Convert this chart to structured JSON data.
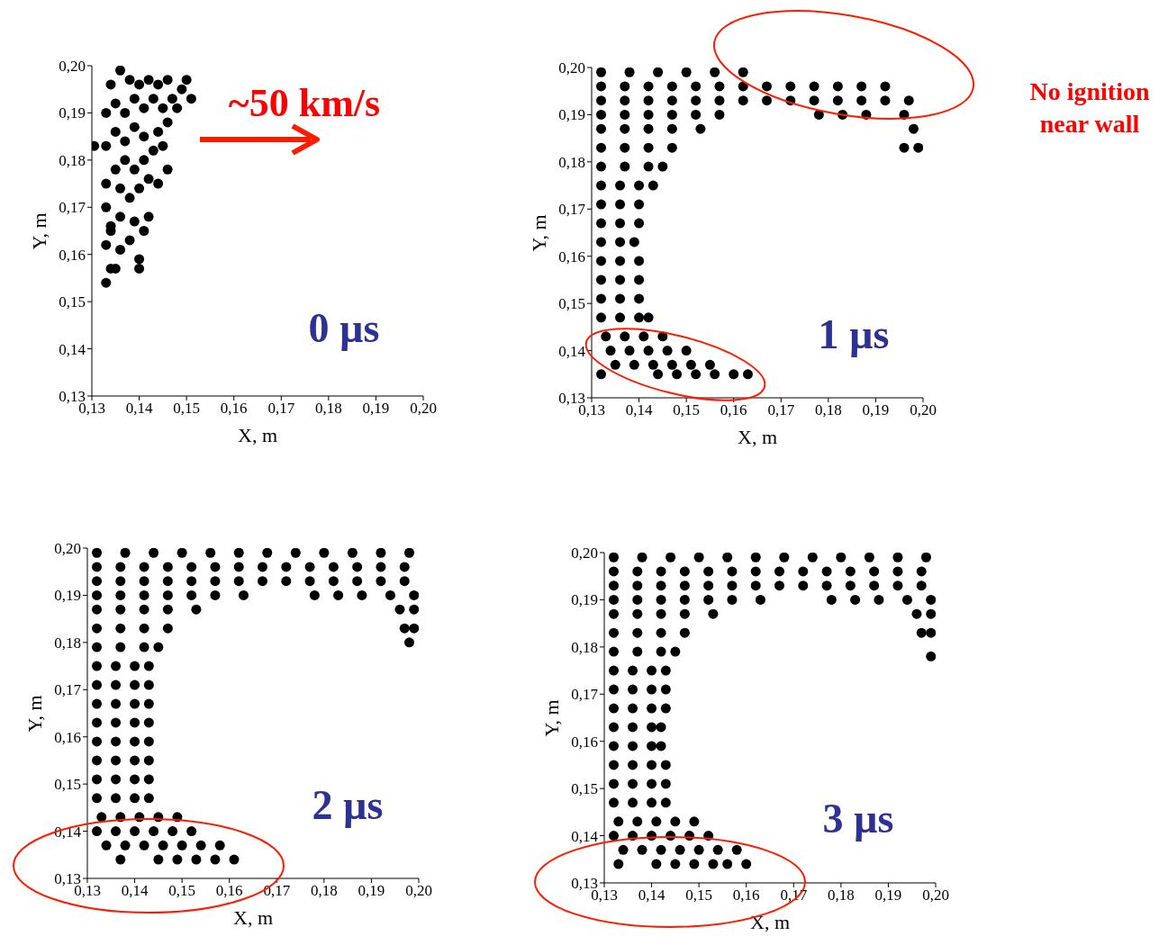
{
  "chart_data": [
    {
      "type": "scatter",
      "xlabel": "X, m",
      "ylabel": "Y, m",
      "marker": "circle",
      "color": "#000000",
      "xlim": [
        0.13,
        0.2
      ],
      "ylim": [
        0.13,
        0.2
      ],
      "xticks": [
        {
          "value": 0.13,
          "label": "0,13"
        },
        {
          "value": 0.14,
          "label": "0,14"
        },
        {
          "value": 0.15,
          "label": "0,15"
        },
        {
          "value": 0.16,
          "label": "0,16"
        },
        {
          "value": 0.17,
          "label": "0,17"
        },
        {
          "value": 0.18,
          "label": "0,18"
        },
        {
          "value": 0.19,
          "label": "0,19"
        },
        {
          "value": 0.2,
          "label": "0,20"
        }
      ],
      "yticks": [
        {
          "value": 0.13,
          "label": "0,13"
        },
        {
          "value": 0.14,
          "label": "0,14"
        },
        {
          "value": 0.15,
          "label": "0,15"
        },
        {
          "value": 0.16,
          "label": "0,16"
        },
        {
          "value": 0.17,
          "label": "0,17"
        },
        {
          "value": 0.18,
          "label": "0,18"
        },
        {
          "value": 0.19,
          "label": "0,19"
        },
        {
          "value": 0.2,
          "label": "0,20"
        }
      ],
      "x": [
        0.1305,
        0.133,
        0.134,
        0.135,
        0.14,
        0.14,
        0.133,
        0.134,
        0.136,
        0.138,
        0.141,
        0.139,
        0.142,
        0.133,
        0.136,
        0.138,
        0.14,
        0.142,
        0.144,
        0.133,
        0.135,
        0.137,
        0.139,
        0.141,
        0.143,
        0.146,
        0.133,
        0.135,
        0.137,
        0.139,
        0.141,
        0.144,
        0.146,
        0.133,
        0.135,
        0.137,
        0.139,
        0.141,
        0.143,
        0.145,
        0.147,
        0.149,
        0.151,
        0.15,
        0.134,
        0.136,
        0.138,
        0.14,
        0.142,
        0.144,
        0.146,
        0.148,
        0.145,
        0.136,
        0.134
      ],
      "values": [
        0.183,
        0.154,
        0.157,
        0.157,
        0.157,
        0.159,
        0.162,
        0.165,
        0.161,
        0.163,
        0.165,
        0.167,
        0.168,
        0.17,
        0.168,
        0.172,
        0.174,
        0.176,
        0.175,
        0.175,
        0.178,
        0.18,
        0.178,
        0.18,
        0.182,
        0.178,
        0.183,
        0.186,
        0.184,
        0.187,
        0.185,
        0.186,
        0.188,
        0.19,
        0.192,
        0.19,
        0.193,
        0.191,
        0.193,
        0.191,
        0.193,
        0.195,
        0.193,
        0.197,
        0.196,
        0.199,
        0.197,
        0.196,
        0.197,
        0.196,
        0.197,
        0.191,
        0.183,
        0.174,
        0.166
      ],
      "annotations": [
        "0 µs",
        "~50 km/s"
      ]
    },
    {
      "type": "scatter",
      "xlabel": "X, m",
      "ylabel": "Y, m",
      "marker": "circle",
      "color": "#000000",
      "xlim": [
        0.13,
        0.2
      ],
      "ylim": [
        0.13,
        0.2
      ],
      "xticks": [
        {
          "value": 0.13,
          "label": "0,13"
        },
        {
          "value": 0.14,
          "label": "0,14"
        },
        {
          "value": 0.15,
          "label": "0,15"
        },
        {
          "value": 0.16,
          "label": "0,16"
        },
        {
          "value": 0.17,
          "label": "0,17"
        },
        {
          "value": 0.18,
          "label": "0,18"
        },
        {
          "value": 0.19,
          "label": "0,19"
        },
        {
          "value": 0.2,
          "label": "0,20"
        }
      ],
      "yticks": [
        {
          "value": 0.13,
          "label": "0,13"
        },
        {
          "value": 0.14,
          "label": "0,14"
        },
        {
          "value": 0.15,
          "label": "0,15"
        },
        {
          "value": 0.16,
          "label": "0,16"
        },
        {
          "value": 0.17,
          "label": "0,17"
        },
        {
          "value": 0.18,
          "label": "0,18"
        },
        {
          "value": 0.19,
          "label": "0,19"
        },
        {
          "value": 0.2,
          "label": "0,20"
        }
      ],
      "x": [
        0.132,
        0.138,
        0.144,
        0.15,
        0.156,
        0.162,
        0.132,
        0.137,
        0.142,
        0.147,
        0.152,
        0.157,
        0.162,
        0.167,
        0.172,
        0.177,
        0.182,
        0.187,
        0.192,
        0.132,
        0.137,
        0.142,
        0.147,
        0.152,
        0.157,
        0.162,
        0.167,
        0.172,
        0.177,
        0.182,
        0.187,
        0.192,
        0.197,
        0.132,
        0.137,
        0.142,
        0.147,
        0.152,
        0.157,
        0.178,
        0.183,
        0.188,
        0.196,
        0.132,
        0.137,
        0.142,
        0.147,
        0.153,
        0.198,
        0.132,
        0.137,
        0.142,
        0.147,
        0.196,
        0.199,
        0.132,
        0.137,
        0.142,
        0.145,
        0.132,
        0.136,
        0.14,
        0.143,
        0.132,
        0.136,
        0.14,
        0.132,
        0.136,
        0.14,
        0.132,
        0.136,
        0.139,
        0.132,
        0.136,
        0.14,
        0.132,
        0.136,
        0.14,
        0.132,
        0.136,
        0.14,
        0.132,
        0.136,
        0.14,
        0.142,
        0.133,
        0.137,
        0.141,
        0.145,
        0.134,
        0.138,
        0.142,
        0.146,
        0.15,
        0.135,
        0.139,
        0.143,
        0.147,
        0.151,
        0.155,
        0.132,
        0.144,
        0.148,
        0.152,
        0.156,
        0.16,
        0.163
      ],
      "values": [
        0.199,
        0.199,
        0.199,
        0.199,
        0.199,
        0.199,
        0.196,
        0.196,
        0.196,
        0.196,
        0.196,
        0.196,
        0.196,
        0.196,
        0.196,
        0.196,
        0.196,
        0.196,
        0.196,
        0.193,
        0.193,
        0.193,
        0.193,
        0.193,
        0.193,
        0.193,
        0.193,
        0.193,
        0.193,
        0.193,
        0.193,
        0.193,
        0.193,
        0.19,
        0.19,
        0.19,
        0.19,
        0.19,
        0.19,
        0.19,
        0.19,
        0.19,
        0.19,
        0.187,
        0.187,
        0.187,
        0.187,
        0.187,
        0.187,
        0.183,
        0.183,
        0.183,
        0.183,
        0.183,
        0.183,
        0.179,
        0.179,
        0.179,
        0.179,
        0.175,
        0.175,
        0.175,
        0.175,
        0.171,
        0.171,
        0.171,
        0.167,
        0.167,
        0.167,
        0.163,
        0.163,
        0.163,
        0.159,
        0.159,
        0.159,
        0.155,
        0.155,
        0.155,
        0.151,
        0.151,
        0.151,
        0.147,
        0.147,
        0.147,
        0.147,
        0.143,
        0.143,
        0.143,
        0.143,
        0.14,
        0.14,
        0.14,
        0.14,
        0.14,
        0.137,
        0.137,
        0.137,
        0.137,
        0.137,
        0.137,
        0.135,
        0.135,
        0.135,
        0.135,
        0.135,
        0.135,
        0.135
      ],
      "annotations": [
        "1 µs",
        "No ignition near wall"
      ]
    },
    {
      "type": "scatter",
      "xlabel": "X, m",
      "ylabel": "Y, m",
      "marker": "circle",
      "color": "#000000",
      "xlim": [
        0.13,
        0.2
      ],
      "ylim": [
        0.13,
        0.2
      ],
      "xticks": [
        {
          "value": 0.13,
          "label": "0,13"
        },
        {
          "value": 0.14,
          "label": "0,14"
        },
        {
          "value": 0.15,
          "label": "0,15"
        },
        {
          "value": 0.16,
          "label": "0,16"
        },
        {
          "value": 0.17,
          "label": "0,17"
        },
        {
          "value": 0.18,
          "label": "0,18"
        },
        {
          "value": 0.19,
          "label": "0,19"
        },
        {
          "value": 0.2,
          "label": "0,20"
        }
      ],
      "yticks": [
        {
          "value": 0.13,
          "label": "0,13"
        },
        {
          "value": 0.14,
          "label": "0,14"
        },
        {
          "value": 0.15,
          "label": "0,15"
        },
        {
          "value": 0.16,
          "label": "0,16"
        },
        {
          "value": 0.17,
          "label": "0,17"
        },
        {
          "value": 0.18,
          "label": "0,18"
        },
        {
          "value": 0.19,
          "label": "0,19"
        },
        {
          "value": 0.2,
          "label": "0,20"
        }
      ],
      "x": [
        0.132,
        0.138,
        0.144,
        0.15,
        0.156,
        0.162,
        0.168,
        0.174,
        0.18,
        0.186,
        0.192,
        0.198,
        0.132,
        0.137,
        0.142,
        0.147,
        0.152,
        0.157,
        0.162,
        0.167,
        0.172,
        0.177,
        0.182,
        0.187,
        0.192,
        0.197,
        0.132,
        0.137,
        0.142,
        0.147,
        0.152,
        0.157,
        0.162,
        0.167,
        0.172,
        0.177,
        0.182,
        0.187,
        0.192,
        0.197,
        0.132,
        0.137,
        0.142,
        0.147,
        0.152,
        0.157,
        0.163,
        0.178,
        0.183,
        0.188,
        0.194,
        0.199,
        0.132,
        0.137,
        0.142,
        0.147,
        0.153,
        0.196,
        0.199,
        0.132,
        0.137,
        0.142,
        0.147,
        0.197,
        0.199,
        0.198,
        0.132,
        0.137,
        0.142,
        0.145,
        0.132,
        0.136,
        0.14,
        0.143,
        0.132,
        0.136,
        0.14,
        0.143,
        0.132,
        0.136,
        0.14,
        0.143,
        0.132,
        0.136,
        0.14,
        0.143,
        0.132,
        0.136,
        0.14,
        0.143,
        0.132,
        0.136,
        0.14,
        0.143,
        0.132,
        0.136,
        0.14,
        0.143,
        0.132,
        0.136,
        0.14,
        0.143,
        0.133,
        0.137,
        0.141,
        0.145,
        0.149,
        0.132,
        0.136,
        0.14,
        0.144,
        0.148,
        0.152,
        0.134,
        0.138,
        0.142,
        0.146,
        0.15,
        0.154,
        0.158,
        0.137,
        0.145,
        0.149,
        0.153,
        0.157,
        0.161
      ],
      "values": [
        0.199,
        0.199,
        0.199,
        0.199,
        0.199,
        0.199,
        0.199,
        0.199,
        0.199,
        0.199,
        0.199,
        0.199,
        0.196,
        0.196,
        0.196,
        0.196,
        0.196,
        0.196,
        0.196,
        0.196,
        0.196,
        0.196,
        0.196,
        0.196,
        0.196,
        0.196,
        0.193,
        0.193,
        0.193,
        0.193,
        0.193,
        0.193,
        0.193,
        0.193,
        0.193,
        0.193,
        0.193,
        0.193,
        0.193,
        0.193,
        0.19,
        0.19,
        0.19,
        0.19,
        0.19,
        0.19,
        0.19,
        0.19,
        0.19,
        0.19,
        0.19,
        0.19,
        0.187,
        0.187,
        0.187,
        0.187,
        0.187,
        0.187,
        0.187,
        0.183,
        0.183,
        0.183,
        0.183,
        0.183,
        0.183,
        0.18,
        0.179,
        0.179,
        0.179,
        0.179,
        0.175,
        0.175,
        0.175,
        0.175,
        0.171,
        0.171,
        0.171,
        0.171,
        0.167,
        0.167,
        0.167,
        0.167,
        0.163,
        0.163,
        0.163,
        0.163,
        0.159,
        0.159,
        0.159,
        0.159,
        0.155,
        0.155,
        0.155,
        0.155,
        0.151,
        0.151,
        0.151,
        0.151,
        0.147,
        0.147,
        0.147,
        0.147,
        0.143,
        0.143,
        0.143,
        0.143,
        0.143,
        0.14,
        0.14,
        0.14,
        0.14,
        0.14,
        0.14,
        0.137,
        0.137,
        0.137,
        0.137,
        0.137,
        0.137,
        0.137,
        0.134,
        0.134,
        0.134,
        0.134,
        0.134,
        0.134
      ],
      "annotations": [
        "2 µs"
      ]
    },
    {
      "type": "scatter",
      "xlabel": "X, m",
      "ylabel": "Y, m",
      "marker": "circle",
      "color": "#000000",
      "xlim": [
        0.13,
        0.2
      ],
      "ylim": [
        0.13,
        0.2
      ],
      "xticks": [
        {
          "value": 0.13,
          "label": "0,13"
        },
        {
          "value": 0.14,
          "label": "0,14"
        },
        {
          "value": 0.15,
          "label": "0,15"
        },
        {
          "value": 0.16,
          "label": "0,16"
        },
        {
          "value": 0.17,
          "label": "0,17"
        },
        {
          "value": 0.18,
          "label": "0,18"
        },
        {
          "value": 0.19,
          "label": "0,19"
        },
        {
          "value": 0.2,
          "label": "0,20"
        }
      ],
      "yticks": [
        {
          "value": 0.13,
          "label": "0,13"
        },
        {
          "value": 0.14,
          "label": "0,14"
        },
        {
          "value": 0.15,
          "label": "0,15"
        },
        {
          "value": 0.16,
          "label": "0,16"
        },
        {
          "value": 0.17,
          "label": "0,17"
        },
        {
          "value": 0.18,
          "label": "0,18"
        },
        {
          "value": 0.19,
          "label": "0,19"
        },
        {
          "value": 0.2,
          "label": "0,20"
        }
      ],
      "x": [
        0.132,
        0.138,
        0.144,
        0.15,
        0.156,
        0.162,
        0.168,
        0.174,
        0.18,
        0.186,
        0.192,
        0.198,
        0.132,
        0.137,
        0.142,
        0.147,
        0.152,
        0.157,
        0.162,
        0.167,
        0.172,
        0.177,
        0.182,
        0.187,
        0.192,
        0.197,
        0.132,
        0.137,
        0.142,
        0.147,
        0.152,
        0.157,
        0.162,
        0.167,
        0.172,
        0.177,
        0.182,
        0.187,
        0.192,
        0.197,
        0.132,
        0.137,
        0.142,
        0.147,
        0.152,
        0.157,
        0.163,
        0.178,
        0.183,
        0.188,
        0.194,
        0.199,
        0.132,
        0.137,
        0.142,
        0.147,
        0.153,
        0.196,
        0.199,
        0.132,
        0.137,
        0.142,
        0.147,
        0.197,
        0.199,
        0.199,
        0.132,
        0.137,
        0.142,
        0.145,
        0.132,
        0.136,
        0.14,
        0.143,
        0.132,
        0.136,
        0.14,
        0.143,
        0.132,
        0.136,
        0.14,
        0.143,
        0.132,
        0.136,
        0.14,
        0.142,
        0.132,
        0.136,
        0.14,
        0.142,
        0.132,
        0.136,
        0.14,
        0.143,
        0.132,
        0.136,
        0.14,
        0.143,
        0.132,
        0.136,
        0.14,
        0.143,
        0.133,
        0.137,
        0.141,
        0.145,
        0.149,
        0.132,
        0.136,
        0.14,
        0.144,
        0.148,
        0.152,
        0.134,
        0.138,
        0.142,
        0.146,
        0.15,
        0.154,
        0.158,
        0.133,
        0.141,
        0.145,
        0.149,
        0.153,
        0.156,
        0.16
      ],
      "values": [
        0.199,
        0.199,
        0.199,
        0.199,
        0.199,
        0.199,
        0.199,
        0.199,
        0.199,
        0.199,
        0.199,
        0.199,
        0.196,
        0.196,
        0.196,
        0.196,
        0.196,
        0.196,
        0.196,
        0.196,
        0.196,
        0.196,
        0.196,
        0.196,
        0.196,
        0.196,
        0.193,
        0.193,
        0.193,
        0.193,
        0.193,
        0.193,
        0.193,
        0.193,
        0.193,
        0.193,
        0.193,
        0.193,
        0.193,
        0.193,
        0.19,
        0.19,
        0.19,
        0.19,
        0.19,
        0.19,
        0.19,
        0.19,
        0.19,
        0.19,
        0.19,
        0.19,
        0.187,
        0.187,
        0.187,
        0.187,
        0.187,
        0.187,
        0.187,
        0.183,
        0.183,
        0.183,
        0.183,
        0.183,
        0.183,
        0.178,
        0.179,
        0.179,
        0.179,
        0.179,
        0.175,
        0.175,
        0.175,
        0.175,
        0.171,
        0.171,
        0.171,
        0.171,
        0.167,
        0.167,
        0.167,
        0.167,
        0.163,
        0.163,
        0.163,
        0.163,
        0.159,
        0.159,
        0.159,
        0.159,
        0.155,
        0.155,
        0.155,
        0.155,
        0.151,
        0.151,
        0.151,
        0.151,
        0.147,
        0.147,
        0.147,
        0.147,
        0.143,
        0.143,
        0.143,
        0.143,
        0.143,
        0.14,
        0.14,
        0.14,
        0.14,
        0.14,
        0.14,
        0.137,
        0.137,
        0.137,
        0.137,
        0.137,
        0.137,
        0.137,
        0.134,
        0.134,
        0.134,
        0.134,
        0.134,
        0.134,
        0.134
      ],
      "annotations": [
        "3 µs"
      ]
    }
  ]
}
